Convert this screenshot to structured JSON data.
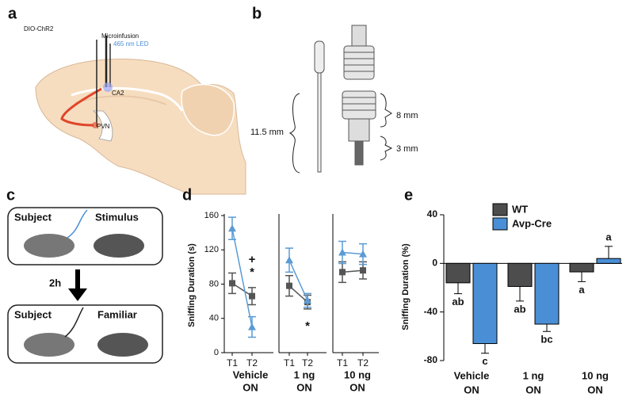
{
  "panels": {
    "a": {
      "label": "a",
      "dio": "DIO-ChR2",
      "microinfusion": "Microinfusion",
      "led": "465 nm LED",
      "ca2": "CA2",
      "pvn": "PVN"
    },
    "b": {
      "label": "b",
      "total": "11.5 mm",
      "upper": "8 mm",
      "lower": "3 mm"
    },
    "c": {
      "label": "c",
      "subject1": "Subject",
      "stimulus": "Stimulus",
      "delay": "2h",
      "subject2": "Subject",
      "familiar": "Familiar"
    }
  },
  "chart_data": [
    {
      "type": "line",
      "label": "d",
      "ylabel": "Sniffing Duration (s)",
      "ylim": [
        0,
        160
      ],
      "yticks": [
        0,
        40,
        80,
        120,
        160
      ],
      "suffix": "ON",
      "groups": [
        {
          "label": "Vehicle",
          "categories": [
            "T1",
            "T2"
          ],
          "annotations": [
            "*",
            "+"
          ],
          "series": [
            {
              "color": "#555555",
              "marker": "square",
              "values": [
                81,
                66
              ],
              "errors": [
                12,
                10
              ]
            },
            {
              "color": "#5b9bd5",
              "marker": "triangle",
              "values": [
                145,
                30
              ],
              "errors": [
                13,
                12
              ]
            }
          ]
        },
        {
          "label": "1 ng",
          "categories": [
            "T1",
            "T2"
          ],
          "annotations": [
            "*"
          ],
          "series": [
            {
              "color": "#555555",
              "marker": "square",
              "values": [
                78,
                59
              ],
              "errors": [
                12,
                8
              ]
            },
            {
              "color": "#5b9bd5",
              "marker": "triangle",
              "values": [
                108,
                61
              ],
              "errors": [
                14,
                8
              ]
            }
          ]
        },
        {
          "label": "10 ng",
          "categories": [
            "T1",
            "T2"
          ],
          "annotations": [],
          "series": [
            {
              "color": "#555555",
              "marker": "square",
              "values": [
                94,
                96
              ],
              "errors": [
                12,
                10
              ]
            },
            {
              "color": "#5b9bd5",
              "marker": "triangle",
              "values": [
                117,
                115
              ],
              "errors": [
                13,
                12
              ]
            }
          ]
        }
      ]
    },
    {
      "type": "bar",
      "label": "e",
      "ylabel": "Sniffing Duration (%)",
      "ylim": [
        -80,
        40
      ],
      "yticks": [
        -80,
        -40,
        0,
        40
      ],
      "categories": [
        "Vehicle",
        "1 ng",
        "10 ng"
      ],
      "suffix": "ON",
      "series": [
        {
          "name": "WT",
          "color": "#4d4d4d",
          "values": [
            -16,
            -19,
            -7
          ],
          "errors": [
            9,
            12,
            8
          ],
          "letters": [
            "ab",
            "ab",
            "a"
          ]
        },
        {
          "name": "Avp-Cre",
          "color": "#4a8fd6",
          "values": [
            -66,
            -50,
            4
          ],
          "errors": [
            8,
            6,
            10
          ],
          "letters": [
            "c",
            "bc",
            "a"
          ]
        }
      ]
    }
  ]
}
